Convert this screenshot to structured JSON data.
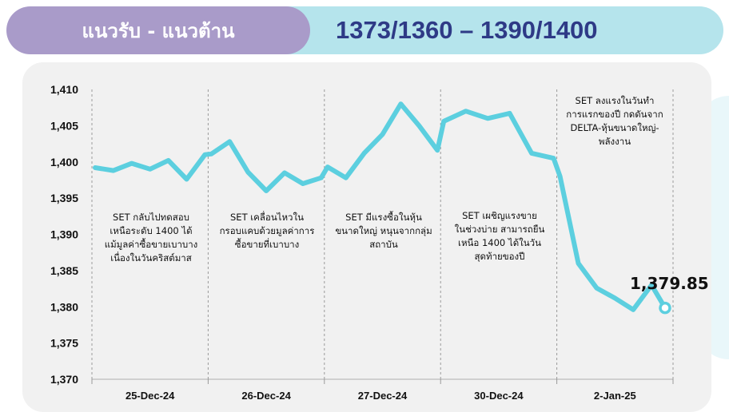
{
  "header": {
    "title": "แนวรับ - แนวต้าน",
    "levels": "1373/1360 – 1390/1400"
  },
  "colors": {
    "line": "#5ccfdf",
    "title_bg": "#a99bc9",
    "levels_bg": "#b5e4ec",
    "levels_text": "#2e3a86"
  },
  "annotations": [
    "SET กลับไปทดสอบ\nเหนือระดับ 1400 ได้\nแม้มูลค่าซื้อขายเบาบาง\nเนื่องในวันคริสต์มาส",
    "SET เคลื่อนไหวใน\nกรอบแคบด้วยมูลค่าการ\nซื้อขายที่เบาบาง",
    "SET มีแรงซื้อในหุ้น\nขนาดใหญ่ หนุนจากกลุ่ม\nสถาบัน",
    "SET เผชิญแรงขาย\nในช่วงบ่าย สามารถยืน\nเหนือ 1400 ได้ในวัน\nสุดท้ายของปี",
    "SET ลงแรงในวันทำ\nการแรกของปี กดดันจาก\nDELTA-หุ้นขนาดใหญ่-\nพลังงาน"
  ],
  "last_value_label": "1,379.85",
  "chart_data": {
    "type": "line",
    "title": "",
    "xlabel": "",
    "ylabel": "",
    "ylim": [
      1370,
      1410
    ],
    "y_ticks": [
      "1,370",
      "1,375",
      "1,380",
      "1,385",
      "1,390",
      "1,395",
      "1,400",
      "1,405",
      "1,410"
    ],
    "sessions": [
      "25-Dec-24",
      "26-Dec-24",
      "27-Dec-24",
      "30-Dec-24",
      "2-Jan-25"
    ],
    "grid": false,
    "series": [
      {
        "values": [
          [
            1399.2,
            1398.8,
            1399.8,
            1399.0,
            1400.2,
            1397.6,
            1401.0
          ],
          [
            1401.1,
            1402.8,
            1398.6,
            1396.0,
            1398.5,
            1397.0,
            1397.8
          ],
          [
            1399.3,
            1397.8,
            1401.2,
            1403.8,
            1408.0,
            1405.0,
            1401.6
          ],
          [
            1405.6,
            1407.0,
            1406.0,
            1406.7,
            1401.2,
            1400.5
          ],
          [
            1398.0,
            1386.0,
            1382.6,
            1381.2,
            1379.6,
            1383.0,
            1379.85
          ]
        ]
      }
    ]
  }
}
